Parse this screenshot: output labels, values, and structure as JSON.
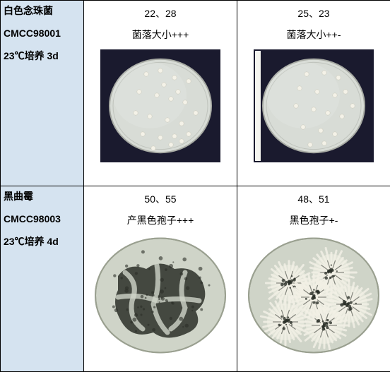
{
  "rows": [
    {
      "organism": "白色念珠菌",
      "strain": "CMCC98001",
      "culture": "23℃培养 3d",
      "colA": {
        "counts": "22、28",
        "desc": "菌落大小+++"
      },
      "colB": {
        "counts": "25、23",
        "desc": "菌落大小++-"
      },
      "dish": {
        "plate_fill": "#d8dcd6",
        "plate_stroke": "#a8aba4",
        "colony_fill": "#f4f2e8",
        "bg": "#1a1a2e",
        "radius": 72,
        "A_points": [
          [
            60,
            30
          ],
          [
            80,
            25
          ],
          [
            100,
            35
          ],
          [
            120,
            40
          ],
          [
            50,
            55
          ],
          [
            75,
            60
          ],
          [
            95,
            65
          ],
          [
            115,
            70
          ],
          [
            45,
            85
          ],
          [
            65,
            90
          ],
          [
            90,
            95
          ],
          [
            110,
            100
          ],
          [
            130,
            85
          ],
          [
            55,
            115
          ],
          [
            80,
            120
          ],
          [
            100,
            118
          ],
          [
            120,
            115
          ],
          [
            70,
            135
          ],
          [
            95,
            130
          ],
          [
            110,
            125
          ],
          [
            85,
            45
          ],
          [
            105,
            55
          ]
        ],
        "B_points": [
          [
            70,
            30
          ],
          [
            95,
            28
          ],
          [
            115,
            35
          ],
          [
            60,
            50
          ],
          [
            85,
            55
          ],
          [
            110,
            60
          ],
          [
            125,
            55
          ],
          [
            55,
            75
          ],
          [
            80,
            80
          ],
          [
            100,
            85
          ],
          [
            120,
            90
          ],
          [
            135,
            75
          ],
          [
            65,
            105
          ],
          [
            90,
            110
          ],
          [
            110,
            115
          ],
          [
            75,
            130
          ],
          [
            95,
            128
          ]
        ]
      }
    },
    {
      "organism": "黑曲霉",
      "strain": "CMCC98003",
      "culture": "23℃培养 4d",
      "colA": {
        "counts": "50、55",
        "desc": "产黑色孢子+++"
      },
      "colB": {
        "counts": "48、51",
        "desc": "黑色孢子+-"
      },
      "asper": {
        "plate_fill": "#cfd4c8",
        "plate_stroke": "#9aa090",
        "white_fill": "#f2f0e6",
        "dark_fill": "#2b2f28",
        "mid_fill": "#6a6f5e",
        "radius": 92
      }
    }
  ]
}
